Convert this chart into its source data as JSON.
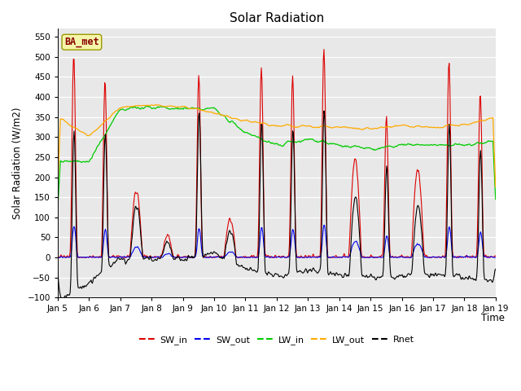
{
  "title": "Solar Radiation",
  "ylabel": "Solar Radiation (W/m2)",
  "xlabel": "Time",
  "ylim": [
    -100,
    570
  ],
  "yticks": [
    -100,
    -50,
    0,
    50,
    100,
    150,
    200,
    250,
    300,
    350,
    400,
    450,
    500,
    550
  ],
  "colors": {
    "SW_in": "#dd0000",
    "SW_out": "#0000ee",
    "LW_in": "#00cc00",
    "LW_out": "#ffaa00",
    "Rnet": "#000000"
  },
  "site_label": "BA_met",
  "plot_bg": "#e8e8e8",
  "legend_labels": [
    "SW_in",
    "SW_out",
    "LW_in",
    "LW_out",
    "Rnet"
  ],
  "n_days": 14,
  "start_day": 5,
  "day_peaks_SW": [
    515,
    445,
    170,
    50,
    462,
    95,
    480,
    458,
    530,
    248,
    358,
    220,
    498,
    418
  ],
  "lw_in_segments": [
    240,
    240,
    370,
    375,
    370,
    370,
    310,
    280,
    295,
    280,
    270,
    280,
    280,
    280,
    290
  ],
  "lw_out_segments": [
    350,
    303,
    375,
    380,
    375,
    360,
    340,
    330,
    325,
    325,
    320,
    330,
    325,
    330,
    350
  ]
}
